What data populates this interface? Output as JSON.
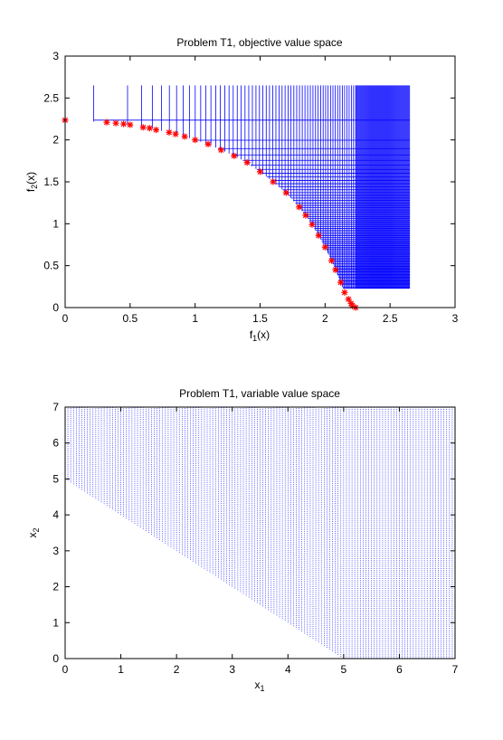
{
  "chart_data": [
    {
      "type": "scatter",
      "title": "Problem T1, objective value space",
      "xlabel": {
        "base": "f",
        "sub": "1",
        "suffix": "(x)"
      },
      "ylabel": {
        "base": "f",
        "sub": "2",
        "suffix": "(x)"
      },
      "xlim": [
        0,
        3
      ],
      "ylim": [
        0,
        3
      ],
      "xticks": [
        0,
        0.5,
        1,
        1.5,
        2,
        2.5,
        3
      ],
      "yticks": [
        0,
        0.5,
        1,
        1.5,
        2,
        2.5,
        3
      ],
      "xtick_labels": [
        "0",
        "0.5",
        "1",
        "1.5",
        "2",
        "2.5",
        "3"
      ],
      "ytick_labels": [
        "0",
        "0.5",
        "1",
        "1.5",
        "2",
        "2.5",
        "3"
      ],
      "grid": false,
      "series": [
        {
          "marker": "line-segments",
          "color": "#0000ff",
          "description_values": "vertical segments from the Pareto front up to f2=2.65 and horizontal segments to f1=2.65",
          "fmax": 2.65
        },
        {
          "marker": "*",
          "color": "#ff0000",
          "x": [
            0,
            0.32,
            0.39,
            0.45,
            0.5,
            0.6,
            0.65,
            0.7,
            0.8,
            0.85,
            0.92,
            1.0,
            1.1,
            1.2,
            1.3,
            1.4,
            1.5,
            1.6,
            1.7,
            1.8,
            1.85,
            1.9,
            1.95,
            2.0,
            2.05,
            2.08,
            2.12,
            2.15,
            2.18,
            2.2,
            2.21,
            2.236
          ],
          "y": [
            2.236,
            2.21,
            2.2,
            2.19,
            2.18,
            2.15,
            2.14,
            2.12,
            2.09,
            2.07,
            2.04,
            2.0,
            1.95,
            1.88,
            1.81,
            1.73,
            1.62,
            1.5,
            1.37,
            1.2,
            1.1,
            0.99,
            0.86,
            0.72,
            0.56,
            0.45,
            0.3,
            0.18,
            0.1,
            0.05,
            0.02,
            0
          ]
        }
      ]
    },
    {
      "type": "area",
      "title": "Problem T1, variable value space",
      "xlabel": {
        "base": "x",
        "sub": "1",
        "suffix": ""
      },
      "ylabel": {
        "base": "x",
        "sub": "2",
        "suffix": ""
      },
      "xlim": [
        0,
        7
      ],
      "ylim": [
        0,
        7
      ],
      "xticks": [
        0,
        1,
        2,
        3,
        4,
        5,
        6,
        7
      ],
      "yticks": [
        0,
        1,
        2,
        3,
        4,
        5,
        6,
        7
      ],
      "xtick_labels": [
        "0",
        "1",
        "2",
        "3",
        "4",
        "5",
        "6",
        "7"
      ],
      "ytick_labels": [
        "0",
        "1",
        "2",
        "3",
        "4",
        "5",
        "6",
        "7"
      ],
      "grid": false,
      "region": "x1 + x2 >= 5 within [0,7]x[0,7]",
      "boundary": {
        "x": [
          0,
          5
        ],
        "y": [
          5,
          0
        ]
      },
      "color": "#0000ff"
    }
  ]
}
